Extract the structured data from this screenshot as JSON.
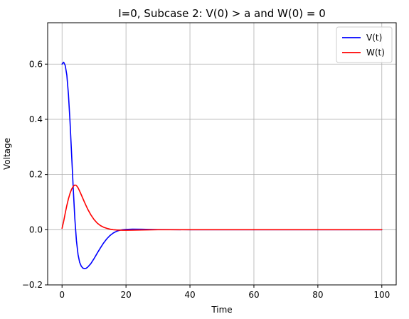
{
  "chart_data": {
    "type": "line",
    "title": "I=0, Subcase 2: V(0) > a and W(0) = 0",
    "xlabel": "Time",
    "ylabel": "Voltage",
    "xlim": [
      -4.5,
      104.5
    ],
    "ylim": [
      -0.2,
      0.75
    ],
    "xticks": [
      0,
      20,
      40,
      60,
      80,
      100
    ],
    "yticks": [
      -0.2,
      0.0,
      0.2,
      0.4,
      0.6
    ],
    "xtick_labels": [
      "0",
      "20",
      "40",
      "60",
      "80",
      "100"
    ],
    "ytick_labels": [
      "−0.2",
      "0.0",
      "0.2",
      "0.4",
      "0.6"
    ],
    "grid": true,
    "legend_position": "top-right",
    "series": [
      {
        "name": "V(t)",
        "color": "#0000ff",
        "x": [
          0,
          0.5,
          1,
          1.5,
          2,
          2.5,
          3,
          3.5,
          4,
          4.5,
          5,
          5.5,
          6,
          6.5,
          7,
          7.5,
          8,
          9,
          10,
          11,
          12,
          13,
          14,
          15,
          16,
          17,
          18,
          19,
          20,
          22,
          25,
          30,
          40,
          60,
          80,
          100
        ],
        "y": [
          0.6,
          0.607,
          0.595,
          0.56,
          0.49,
          0.39,
          0.27,
          0.15,
          0.04,
          -0.04,
          -0.09,
          -0.118,
          -0.132,
          -0.139,
          -0.141,
          -0.14,
          -0.136,
          -0.123,
          -0.105,
          -0.085,
          -0.066,
          -0.048,
          -0.033,
          -0.021,
          -0.012,
          -0.006,
          -0.002,
          0.0,
          0.001,
          0.002,
          0.0015,
          0.0005,
          0,
          0,
          0,
          0
        ]
      },
      {
        "name": "W(t)",
        "color": "#ff0000",
        "x": [
          0,
          0.5,
          1,
          1.5,
          2,
          2.5,
          3,
          3.5,
          4,
          4.5,
          5,
          5.5,
          6,
          7,
          8,
          9,
          10,
          11,
          12,
          13,
          14,
          15,
          16,
          17,
          18,
          19,
          20,
          22,
          25,
          30,
          40,
          60,
          80,
          100
        ],
        "y": [
          0.005,
          0.03,
          0.06,
          0.088,
          0.112,
          0.132,
          0.147,
          0.157,
          0.162,
          0.16,
          0.152,
          0.14,
          0.127,
          0.1,
          0.075,
          0.054,
          0.037,
          0.024,
          0.015,
          0.009,
          0.005,
          0.002,
          0.0,
          -0.001,
          -0.0015,
          -0.002,
          -0.002,
          -0.0015,
          -0.001,
          0,
          0,
          0,
          0,
          0
        ]
      }
    ]
  }
}
